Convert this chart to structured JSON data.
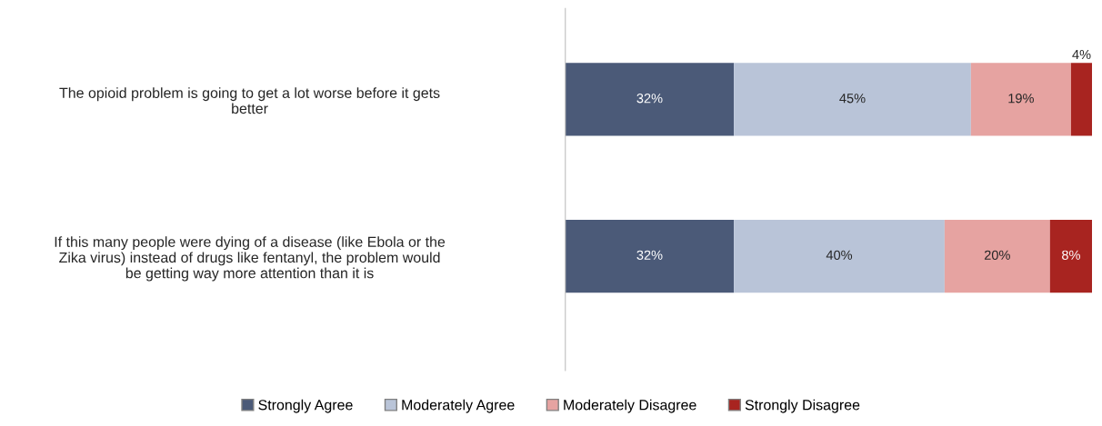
{
  "chart_data": {
    "type": "bar",
    "orientation": "horizontal",
    "stacked": true,
    "legend": "bottom",
    "grid": false,
    "categories": [
      "The opioid problem is going to get a lot worse before it gets\nbetter",
      "If this many people were dying of a disease (like Ebola or the\nZika virus) instead of drugs like fentanyl, the problem would\nbe getting way more attention than it is"
    ],
    "series": [
      {
        "name": "Strongly Agree",
        "color": "#4b5a78",
        "values": [
          32,
          32
        ],
        "value_labels": [
          "32%",
          "32%"
        ]
      },
      {
        "name": "Moderately Agree",
        "color": "#b9c4d8",
        "values": [
          45,
          40
        ],
        "value_labels": [
          "45%",
          "40%"
        ]
      },
      {
        "name": "Moderately Disagree",
        "color": "#e6a3a1",
        "values": [
          19,
          20
        ],
        "value_labels": [
          "19%",
          "20%"
        ]
      },
      {
        "name": "Strongly Disagree",
        "color": "#a82420",
        "values": [
          4,
          8
        ],
        "value_labels": [
          "4%",
          "8%"
        ]
      }
    ]
  }
}
